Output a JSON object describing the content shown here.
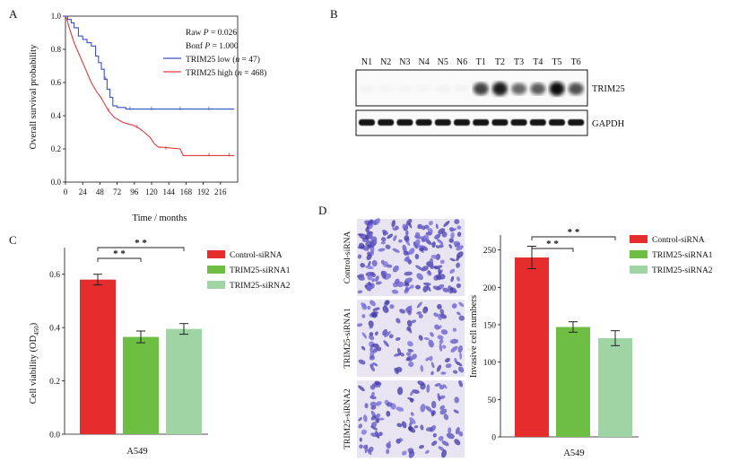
{
  "panels": {
    "A": "A",
    "B": "B",
    "C": "C",
    "D": "D"
  },
  "chart_data": [
    {
      "panel": "A",
      "type": "line",
      "xlabel": "Time / months",
      "ylabel": "Overall survival probability",
      "xticks": [
        "0",
        "24",
        "48",
        "72",
        "96",
        "120",
        "144",
        "168",
        "192",
        "216"
      ],
      "yticks": [
        "0.0",
        "0.2",
        "0.4",
        "0.6",
        "0.8",
        "1.0"
      ],
      "xlim": [
        0,
        240
      ],
      "ylim": [
        0,
        1.0
      ],
      "stats": {
        "raw_prefix": "Raw ",
        "raw_p": "P",
        "raw_val": " = 0.026",
        "bonf_prefix": "Bonf ",
        "bonf_p": "P",
        "bonf_val": " = 1.000"
      },
      "legend": [
        {
          "label": "TRIM25 low (",
          "n": "n",
          "rest": " = 47)",
          "color": "#3a52c8"
        },
        {
          "label": "TRIM25 high (",
          "n": "n",
          "rest": " = 468)",
          "color": "#e03a3a"
        }
      ],
      "series": [
        {
          "name": "TRIM25 low",
          "color": "#3a52c8",
          "points": [
            [
              0,
              1.0
            ],
            [
              3,
              1.0
            ],
            [
              3,
              0.98
            ],
            [
              8,
              0.98
            ],
            [
              8,
              0.96
            ],
            [
              12,
              0.96
            ],
            [
              12,
              0.93
            ],
            [
              18,
              0.93
            ],
            [
              18,
              0.88
            ],
            [
              24,
              0.88
            ],
            [
              24,
              0.86
            ],
            [
              30,
              0.86
            ],
            [
              30,
              0.84
            ],
            [
              36,
              0.84
            ],
            [
              36,
              0.82
            ],
            [
              42,
              0.82
            ],
            [
              42,
              0.76
            ],
            [
              46,
              0.76
            ],
            [
              46,
              0.72
            ],
            [
              50,
              0.72
            ],
            [
              50,
              0.68
            ],
            [
              54,
              0.68
            ],
            [
              54,
              0.62
            ],
            [
              58,
              0.62
            ],
            [
              58,
              0.56
            ],
            [
              62,
              0.56
            ],
            [
              62,
              0.51
            ],
            [
              66,
              0.51
            ],
            [
              66,
              0.46
            ],
            [
              72,
              0.46
            ],
            [
              72,
              0.45
            ],
            [
              84,
              0.45
            ],
            [
              84,
              0.44
            ],
            [
              235,
              0.44
            ]
          ]
        },
        {
          "name": "TRIM25 high",
          "color": "#e03a3a",
          "points": [
            [
              0,
              1.0
            ],
            [
              2,
              0.98
            ],
            [
              4,
              0.95
            ],
            [
              6,
              0.92
            ],
            [
              9,
              0.88
            ],
            [
              12,
              0.84
            ],
            [
              16,
              0.8
            ],
            [
              20,
              0.76
            ],
            [
              24,
              0.72
            ],
            [
              28,
              0.68
            ],
            [
              32,
              0.64
            ],
            [
              36,
              0.6
            ],
            [
              40,
              0.57
            ],
            [
              44,
              0.54
            ],
            [
              48,
              0.52
            ],
            [
              52,
              0.49
            ],
            [
              56,
              0.46
            ],
            [
              60,
              0.43
            ],
            [
              64,
              0.41
            ],
            [
              68,
              0.39
            ],
            [
              72,
              0.38
            ],
            [
              80,
              0.36
            ],
            [
              88,
              0.35
            ],
            [
              96,
              0.34
            ],
            [
              104,
              0.32
            ],
            [
              110,
              0.3
            ],
            [
              118,
              0.27
            ],
            [
              124,
              0.23
            ],
            [
              130,
              0.21
            ],
            [
              136,
              0.21
            ],
            [
              160,
              0.2
            ],
            [
              164,
              0.16
            ],
            [
              235,
              0.16
            ]
          ]
        }
      ]
    },
    {
      "panel": "C",
      "type": "bar",
      "xlabel": "A549",
      "ylabel": "Cell viability (OD",
      "ylabel_sub": "450",
      "ylabel_close": ")",
      "yticks": [
        "0.0",
        "0.2",
        "0.4",
        "0.6"
      ],
      "ylim": [
        0,
        0.7
      ],
      "categories": [
        "Control-siRNA",
        "TRIM25-siRNA1",
        "TRIM25-siRNA2"
      ],
      "values": [
        0.58,
        0.365,
        0.395
      ],
      "errors": [
        0.02,
        0.022,
        0.02
      ],
      "colors": [
        "#e52d2d",
        "#6ebe44",
        "#9fd4a4"
      ],
      "significance": [
        "* *",
        "* *"
      ]
    },
    {
      "panel": "D",
      "type": "bar",
      "xlabel": "A549",
      "ylabel": "Invasive cell numbers",
      "yticks": [
        "0",
        "50",
        "100",
        "150",
        "200",
        "250"
      ],
      "ylim": [
        0,
        270
      ],
      "categories": [
        "Control-siRNA",
        "TRIM25-siRNA1",
        "TRIM25-siRNA2"
      ],
      "values": [
        240,
        147,
        132
      ],
      "errors": [
        15,
        7,
        10
      ],
      "colors": [
        "#e52d2d",
        "#6ebe44",
        "#9fd4a4"
      ],
      "significance": [
        "* *",
        "* *"
      ]
    }
  ],
  "blot": {
    "lanes": [
      "N1",
      "N2",
      "N3",
      "N4",
      "N5",
      "N6",
      "T1",
      "T2",
      "T3",
      "T4",
      "T5",
      "T6"
    ],
    "trim25_label": "TRIM25",
    "gapdh_label": "GAPDH",
    "trim25_intensity": [
      0.03,
      0.02,
      0.02,
      0.02,
      0.03,
      0.03,
      0.75,
      0.9,
      0.6,
      0.65,
      0.95,
      0.7
    ]
  },
  "micrographs": {
    "labels": [
      "Control-siRNA",
      "TRIM25-siRNA1",
      "TRIM25-siRNA2"
    ],
    "density": [
      1.0,
      0.6,
      0.55
    ]
  }
}
